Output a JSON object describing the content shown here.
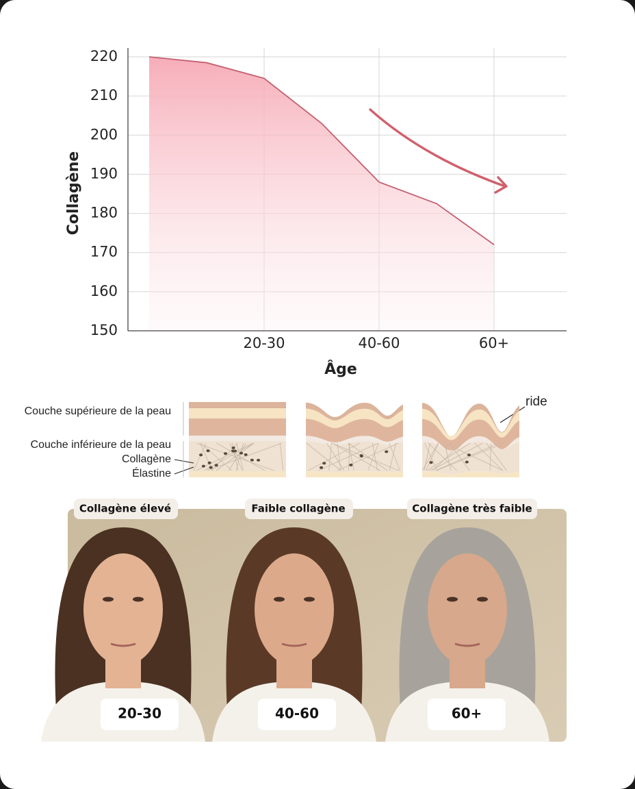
{
  "chart_data": {
    "type": "area",
    "categories": [
      null,
      null,
      "20-30",
      null,
      "40-60",
      null,
      "60+"
    ],
    "values": [
      220,
      218.5,
      214.5,
      203,
      188,
      182.5,
      172
    ],
    "color": "#c4606f",
    "ylim": [
      150,
      220
    ],
    "yticks": [
      150,
      160,
      170,
      180,
      190,
      200,
      210,
      220
    ],
    "grid": true,
    "y_label": "Collagène",
    "x_label": "Âge"
  },
  "skin_diagram": {
    "labels": [
      "Couche supérieure de la peau",
      "Couche inférieure de la peau",
      "Collagène",
      "Élastine"
    ],
    "wrinkle_label": "ride"
  },
  "portraits": [
    {
      "caption": "Collagène élevé",
      "age": "20-30"
    },
    {
      "caption": "Faible collagène",
      "age": "40-60"
    },
    {
      "caption": "Collagène très faible",
      "age": "60+"
    }
  ]
}
